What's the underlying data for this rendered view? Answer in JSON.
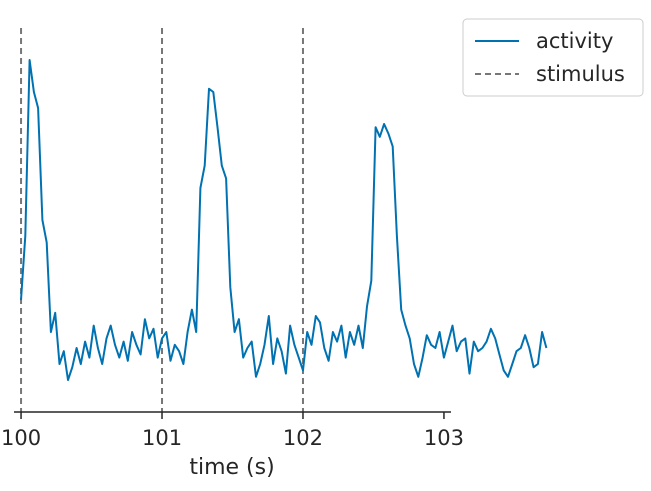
{
  "chart_data": {
    "type": "line",
    "title": "",
    "xlabel": "time (s)",
    "ylabel": "",
    "xlim": [
      99.95,
      103.05
    ],
    "ylim": [
      -0.05,
      1.15
    ],
    "xticks": [
      "100",
      "101",
      "102",
      "103"
    ],
    "yticks": [],
    "grid": false,
    "legend_position": "outside-top-right",
    "series": [
      {
        "name": "activity",
        "color": "#0072b2",
        "style": "solid",
        "x_start": 100.0,
        "x_step": 0.0303,
        "values": [
          0.3,
          0.5,
          1.05,
          0.95,
          0.9,
          0.55,
          0.48,
          0.2,
          0.26,
          0.1,
          0.14,
          0.05,
          0.09,
          0.15,
          0.1,
          0.17,
          0.12,
          0.22,
          0.15,
          0.1,
          0.18,
          0.22,
          0.16,
          0.12,
          0.17,
          0.11,
          0.2,
          0.16,
          0.13,
          0.24,
          0.18,
          0.21,
          0.12,
          0.18,
          0.2,
          0.11,
          0.16,
          0.14,
          0.1,
          0.2,
          0.27,
          0.2,
          0.65,
          0.72,
          0.96,
          0.95,
          0.84,
          0.72,
          0.68,
          0.34,
          0.2,
          0.24,
          0.12,
          0.15,
          0.17,
          0.06,
          0.1,
          0.16,
          0.25,
          0.1,
          0.18,
          0.14,
          0.07,
          0.22,
          0.16,
          0.12,
          0.08,
          0.2,
          0.16,
          0.25,
          0.23,
          0.15,
          0.11,
          0.2,
          0.17,
          0.22,
          0.12,
          0.2,
          0.16,
          0.22,
          0.15,
          0.28,
          0.36,
          0.84,
          0.81,
          0.85,
          0.82,
          0.78,
          0.5,
          0.27,
          0.22,
          0.18,
          0.1,
          0.06,
          0.12,
          0.19,
          0.16,
          0.15,
          0.2,
          0.12,
          0.17,
          0.22,
          0.14,
          0.17,
          0.18,
          0.07,
          0.17,
          0.14,
          0.15,
          0.17,
          0.21,
          0.18,
          0.13,
          0.08,
          0.06,
          0.1,
          0.14,
          0.15,
          0.19,
          0.15,
          0.09,
          0.1,
          0.2,
          0.15
        ]
      },
      {
        "name": "stimulus",
        "color": "#777777",
        "style": "dashed",
        "x": [
          100,
          101,
          102
        ]
      }
    ]
  }
}
